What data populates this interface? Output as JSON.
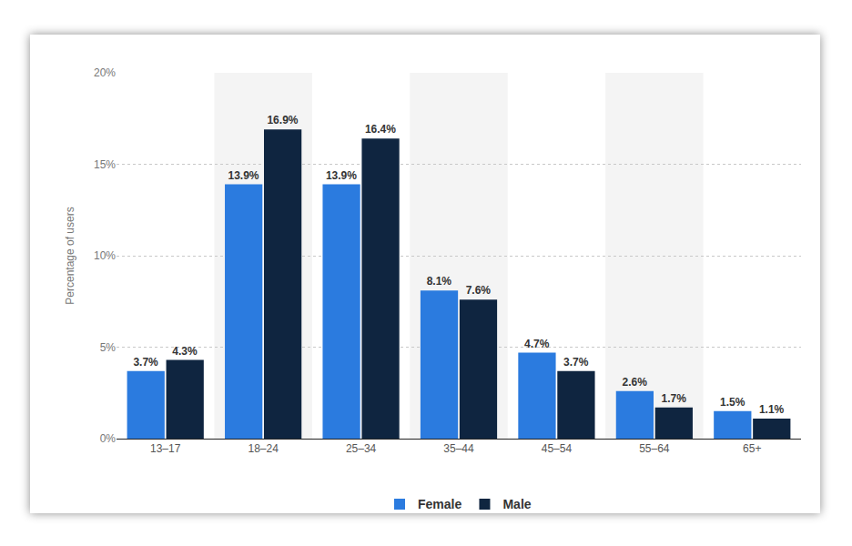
{
  "chart_data": {
    "type": "bar",
    "categories": [
      "13–17",
      "18–24",
      "25–34",
      "35–44",
      "45–54",
      "55–64",
      "65+"
    ],
    "y_label": "Percentage of users",
    "series": [
      {
        "name": "Female",
        "color": "#2b7bdf",
        "values": [
          3.7,
          13.9,
          13.9,
          8.1,
          4.7,
          2.6,
          1.5
        ],
        "value_labels": [
          "3.7%",
          "13.9%",
          "13.9%",
          "8.1%",
          "4.7%",
          "2.6%",
          "1.5%"
        ]
      },
      {
        "name": "Male",
        "color": "#0f2540",
        "values": [
          4.3,
          16.9,
          16.4,
          7.6,
          3.7,
          1.7,
          1.1
        ],
        "value_labels": [
          "4.3%",
          "16.9%",
          "16.4%",
          "7.6%",
          "3.7%",
          "1.7%",
          "1.1%"
        ]
      }
    ],
    "ylim": [
      0,
      20
    ],
    "yticks": [
      {
        "value": 0,
        "label": "0%"
      },
      {
        "value": 5,
        "label": "5%"
      },
      {
        "value": 10,
        "label": "10%"
      },
      {
        "value": 15,
        "label": "15%"
      },
      {
        "value": 20,
        "label": "20%"
      }
    ],
    "grid": true,
    "legend": "bottom",
    "data_labels": true
  }
}
